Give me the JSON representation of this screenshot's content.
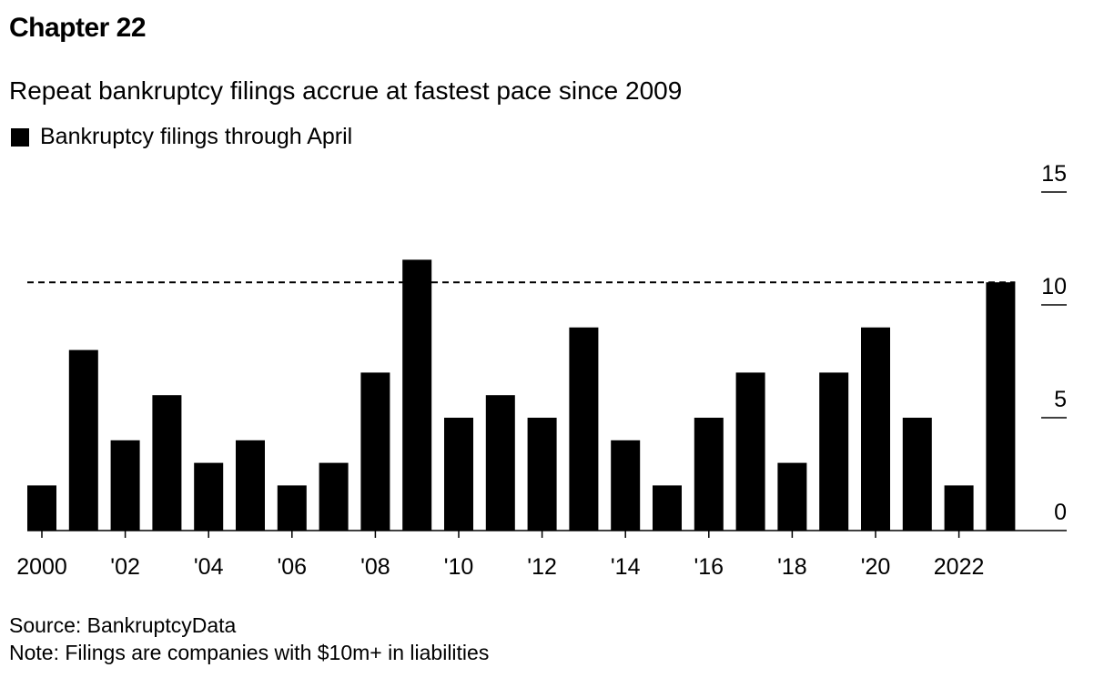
{
  "header": {
    "title": "Chapter 22",
    "subtitle": "Repeat bankruptcy filings accrue at fastest pace since 2009"
  },
  "footer": {
    "source": "Source: BankruptcyData",
    "note": "Note: Filings are companies with $10m+ in liabilities"
  },
  "colors": {
    "bar": "#000000",
    "axis": "#000000",
    "reference_line": "#000000"
  },
  "chart_data": {
    "type": "bar",
    "title": "Repeat bankruptcy filings accrue at fastest pace since 2009",
    "categories": [
      "2000",
      "2001",
      "2002",
      "2003",
      "2004",
      "2005",
      "2006",
      "2007",
      "2008",
      "2009",
      "2010",
      "2011",
      "2012",
      "2013",
      "2014",
      "2015",
      "2016",
      "2017",
      "2018",
      "2019",
      "2020",
      "2021",
      "2022",
      "2023"
    ],
    "series": [
      {
        "name": "Bankruptcy filings through April",
        "values": [
          2,
          8,
          4,
          6,
          3,
          4,
          2,
          3,
          7,
          12,
          5,
          6,
          5,
          9,
          4,
          2,
          5,
          7,
          3,
          7,
          9,
          5,
          2,
          11
        ]
      }
    ],
    "x_tick_labels": [
      {
        "category": "2000",
        "label": "2000"
      },
      {
        "category": "2002",
        "label": "'02"
      },
      {
        "category": "2004",
        "label": "'04"
      },
      {
        "category": "2006",
        "label": "'06"
      },
      {
        "category": "2008",
        "label": "'08"
      },
      {
        "category": "2010",
        "label": "'10"
      },
      {
        "category": "2012",
        "label": "'12"
      },
      {
        "category": "2014",
        "label": "'14"
      },
      {
        "category": "2016",
        "label": "'16"
      },
      {
        "category": "2018",
        "label": "'18"
      },
      {
        "category": "2020",
        "label": "'20"
      },
      {
        "category": "2022",
        "label": "2022"
      }
    ],
    "y_ticks": [
      0,
      5,
      10,
      15
    ],
    "ylim": [
      0,
      15
    ],
    "y_axis_position": "right",
    "reference_line": {
      "value": 11,
      "style": "dashed"
    },
    "xlabel": "",
    "ylabel": "",
    "grid": false,
    "legend_position": "top-left"
  }
}
